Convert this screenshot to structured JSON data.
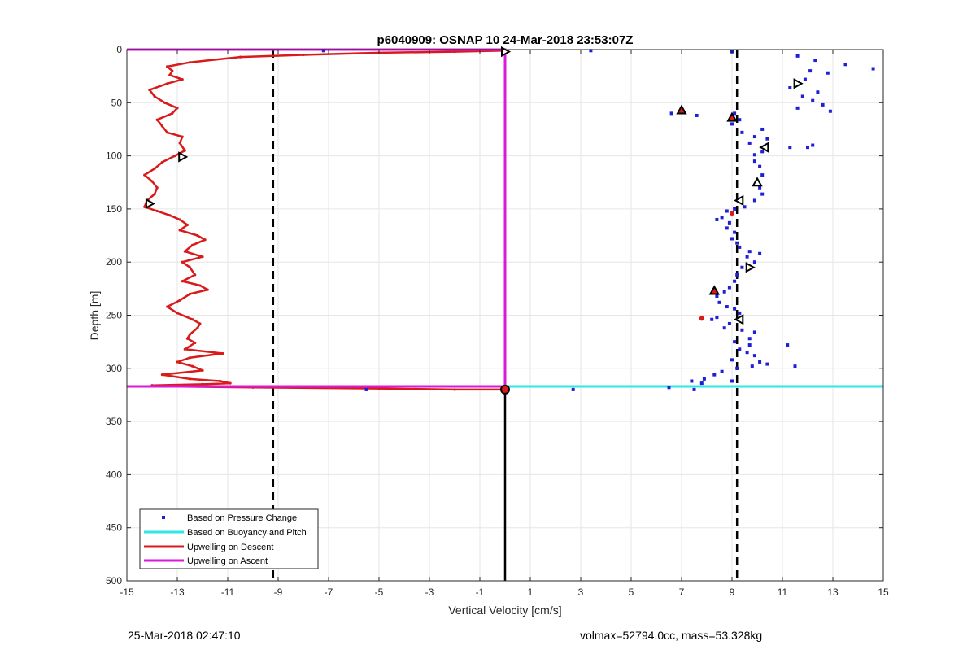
{
  "chart_data": {
    "type": "scatter",
    "title": "p6040909: OSNAP 10 24-Mar-2018 23:53:07Z",
    "xlabel": "Vertical Velocity [cm/s]",
    "ylabel": "Depth [m]",
    "xlim": [
      -15,
      15
    ],
    "ylim": [
      0,
      500
    ],
    "y_reversed": true,
    "grid": true,
    "legend_position": "bottom-left",
    "xticks": [
      -15,
      -13,
      -11,
      -9,
      -7,
      -5,
      -3,
      -1,
      1,
      3,
      5,
      7,
      9,
      11,
      13,
      15
    ],
    "xtick_labels": [
      "-15",
      "-13",
      "-11",
      "-9",
      "-7",
      "-5",
      "-3",
      "-1",
      "1",
      "3",
      "5",
      "7",
      "9",
      "11",
      "13",
      "15"
    ],
    "yticks": [
      0,
      50,
      100,
      150,
      200,
      250,
      300,
      350,
      400,
      450,
      500
    ],
    "ytick_labels": [
      "0",
      "50",
      "100",
      "150",
      "200",
      "250",
      "300",
      "350",
      "400",
      "450",
      "500"
    ],
    "colors": {
      "pressure": "#1f1fd6",
      "buoyancy": "#33e6e6",
      "descent": "#d91a1a",
      "ascent": "#d91ad9",
      "dashed": "#000000",
      "vertical": "#000000",
      "marker_fill": "#d91a1a",
      "grid": "#e6e6e6"
    },
    "series": [
      {
        "name": "Based on Pressure Change",
        "style": "dots",
        "points": [
          [
            3.4,
            1
          ],
          [
            9,
            2
          ],
          [
            -7.2,
            1
          ],
          [
            11.6,
            6
          ],
          [
            12.3,
            10
          ],
          [
            13.5,
            14
          ],
          [
            14.6,
            18
          ],
          [
            12.1,
            20
          ],
          [
            11.9,
            28
          ],
          [
            12.8,
            22
          ],
          [
            11.3,
            36
          ],
          [
            12.4,
            40
          ],
          [
            11.8,
            44
          ],
          [
            12.2,
            48
          ],
          [
            12.6,
            52
          ],
          [
            11.6,
            55
          ],
          [
            12.9,
            58
          ],
          [
            6.6,
            60
          ],
          [
            7.6,
            62
          ],
          [
            9.1,
            60
          ],
          [
            9.3,
            66
          ],
          [
            9.0,
            70
          ],
          [
            10.2,
            75
          ],
          [
            9.4,
            78
          ],
          [
            9.9,
            82
          ],
          [
            10.4,
            84
          ],
          [
            9.7,
            88
          ],
          [
            12.2,
            90
          ],
          [
            12.0,
            92
          ],
          [
            10.2,
            96
          ],
          [
            9.9,
            99
          ],
          [
            11.3,
            92
          ],
          [
            9.9,
            105
          ],
          [
            10.1,
            110
          ],
          [
            10.2,
            118
          ],
          [
            10.0,
            125
          ],
          [
            10.1,
            130
          ],
          [
            10.2,
            136
          ],
          [
            9.9,
            142
          ],
          [
            9.5,
            148
          ],
          [
            9.1,
            150
          ],
          [
            8.8,
            152
          ],
          [
            8.6,
            158
          ],
          [
            8.4,
            160
          ],
          [
            8.9,
            163
          ],
          [
            8.8,
            168
          ],
          [
            9.1,
            172
          ],
          [
            9.0,
            178
          ],
          [
            9.2,
            182
          ],
          [
            9.3,
            186
          ],
          [
            9.7,
            190
          ],
          [
            10.1,
            192
          ],
          [
            9.6,
            195
          ],
          [
            9.9,
            200
          ],
          [
            9.4,
            205
          ],
          [
            9.2,
            212
          ],
          [
            9.1,
            218
          ],
          [
            8.9,
            224
          ],
          [
            8.7,
            228
          ],
          [
            8.4,
            232
          ],
          [
            8.5,
            238
          ],
          [
            8.8,
            242
          ],
          [
            9.1,
            244
          ],
          [
            9.3,
            248
          ],
          [
            8.4,
            252
          ],
          [
            8.2,
            254
          ],
          [
            8.9,
            258
          ],
          [
            8.7,
            262
          ],
          [
            9.4,
            264
          ],
          [
            9.9,
            266
          ],
          [
            9.7,
            272
          ],
          [
            9.1,
            275
          ],
          [
            9.7,
            278
          ],
          [
            11.2,
            278
          ],
          [
            9.3,
            282
          ],
          [
            9.6,
            285
          ],
          [
            9.9,
            288
          ],
          [
            9.0,
            292
          ],
          [
            10.1,
            294
          ],
          [
            10.4,
            296
          ],
          [
            9.8,
            298
          ],
          [
            11.5,
            298
          ],
          [
            9.2,
            300
          ],
          [
            8.6,
            303
          ],
          [
            8.3,
            306
          ],
          [
            7.9,
            310
          ],
          [
            7.4,
            312
          ],
          [
            7.8,
            314
          ],
          [
            9.0,
            312
          ],
          [
            6.5,
            318
          ],
          [
            7.5,
            320
          ],
          [
            2.7,
            320
          ],
          [
            -5.5,
            320
          ]
        ]
      },
      {
        "name": "Based on Buoyancy and Pitch",
        "style": "line",
        "points": [
          [
            0,
            0
          ],
          [
            0,
            317
          ],
          [
            15,
            317
          ]
        ]
      },
      {
        "name": "Upwelling on Descent",
        "style": "line",
        "points": [
          [
            0,
            1
          ],
          [
            -2,
            2
          ],
          [
            -5,
            3
          ],
          [
            -8,
            5
          ],
          [
            -10.5,
            7
          ],
          [
            -12.5,
            12
          ],
          [
            -13.4,
            16
          ],
          [
            -13.2,
            20
          ],
          [
            -13.3,
            24
          ],
          [
            -12.8,
            28
          ],
          [
            -13.4,
            32
          ],
          [
            -14.1,
            38
          ],
          [
            -13.9,
            44
          ],
          [
            -13.5,
            50
          ],
          [
            -13.0,
            55
          ],
          [
            -13.2,
            60
          ],
          [
            -13.8,
            66
          ],
          [
            -13.6,
            72
          ],
          [
            -13.4,
            78
          ],
          [
            -12.8,
            82
          ],
          [
            -12.9,
            88
          ],
          [
            -12.7,
            95
          ],
          [
            -13.1,
            100
          ],
          [
            -13.6,
            106
          ],
          [
            -13.9,
            112
          ],
          [
            -14.3,
            118
          ],
          [
            -14.0,
            124
          ],
          [
            -13.8,
            130
          ],
          [
            -13.9,
            136
          ],
          [
            -14.2,
            142
          ],
          [
            -14.3,
            148
          ],
          [
            -13.8,
            152
          ],
          [
            -13.3,
            156
          ],
          [
            -12.9,
            160
          ],
          [
            -12.6,
            165
          ],
          [
            -12.9,
            170
          ],
          [
            -12.2,
            175
          ],
          [
            -11.9,
            179
          ],
          [
            -12.4,
            184
          ],
          [
            -12.7,
            190
          ],
          [
            -12.0,
            195
          ],
          [
            -12.8,
            200
          ],
          [
            -12.5,
            205
          ],
          [
            -12.3,
            212
          ],
          [
            -12.8,
            218
          ],
          [
            -12.1,
            222
          ],
          [
            -11.8,
            226
          ],
          [
            -12.5,
            230
          ],
          [
            -12.9,
            236
          ],
          [
            -13.4,
            242
          ],
          [
            -13.0,
            248
          ],
          [
            -12.4,
            254
          ],
          [
            -12.1,
            258
          ],
          [
            -12.2,
            262
          ],
          [
            -12.5,
            268
          ],
          [
            -12.6,
            272
          ],
          [
            -12.3,
            276
          ],
          [
            -12.7,
            282
          ],
          [
            -11.2,
            286
          ],
          [
            -12.5,
            290
          ],
          [
            -13.0,
            294
          ],
          [
            -12.4,
            298
          ],
          [
            -12.0,
            302
          ],
          [
            -13.6,
            306
          ],
          [
            -12.5,
            310
          ],
          [
            -11.3,
            312
          ],
          [
            -10.9,
            314
          ],
          [
            -12,
            315
          ],
          [
            -14,
            316
          ],
          [
            -13.5,
            317
          ],
          [
            -10,
            318
          ],
          [
            -5,
            319
          ],
          [
            -2,
            320
          ],
          [
            0,
            320
          ]
        ]
      },
      {
        "name": "Upwelling on Ascent",
        "style": "line",
        "points": [
          [
            -15,
            0
          ],
          [
            0,
            0
          ],
          [
            0,
            317
          ],
          [
            -15,
            317
          ]
        ]
      }
    ],
    "reference_lines": [
      {
        "orientation": "vertical",
        "style": "dashed",
        "x": -9.2,
        "y_range": [
          0,
          500
        ]
      },
      {
        "orientation": "vertical",
        "style": "dashed",
        "x": 9.2,
        "y_range": [
          0,
          500
        ]
      },
      {
        "orientation": "vertical",
        "style": "solid",
        "x": 0,
        "y_range": [
          320,
          500
        ]
      }
    ],
    "markers": [
      {
        "shape": "triangle-right",
        "filled": false,
        "x": 0,
        "y": 2
      },
      {
        "shape": "triangle-right",
        "filled": false,
        "x": 11.6,
        "y": 32
      },
      {
        "shape": "triangle-up",
        "filled": true,
        "x": 7.0,
        "y": 57
      },
      {
        "shape": "triangle-up",
        "filled": true,
        "x": 9.0,
        "y": 64
      },
      {
        "shape": "triangle-left",
        "filled": false,
        "x": 10.3,
        "y": 92
      },
      {
        "shape": "triangle-right",
        "filled": false,
        "x": -12.8,
        "y": 101
      },
      {
        "shape": "triangle-up",
        "filled": false,
        "x": 10.0,
        "y": 125
      },
      {
        "shape": "triangle-left",
        "filled": false,
        "x": 9.3,
        "y": 142
      },
      {
        "shape": "triangle-right",
        "filled": false,
        "x": -14.1,
        "y": 145
      },
      {
        "shape": "dot",
        "filled": true,
        "x": 9.0,
        "y": 154
      },
      {
        "shape": "triangle-right",
        "filled": false,
        "x": 9.7,
        "y": 205
      },
      {
        "shape": "triangle-up",
        "filled": true,
        "x": 8.3,
        "y": 227
      },
      {
        "shape": "dot",
        "filled": true,
        "x": 7.8,
        "y": 253
      },
      {
        "shape": "triangle-left",
        "filled": false,
        "x": 9.3,
        "y": 254
      },
      {
        "shape": "circle",
        "filled": true,
        "x": 0,
        "y": 320
      }
    ]
  },
  "footer": {
    "left": "25-Mar-2018 02:47:10",
    "right": "volmax=52794.0cc, mass=53.328kg"
  }
}
